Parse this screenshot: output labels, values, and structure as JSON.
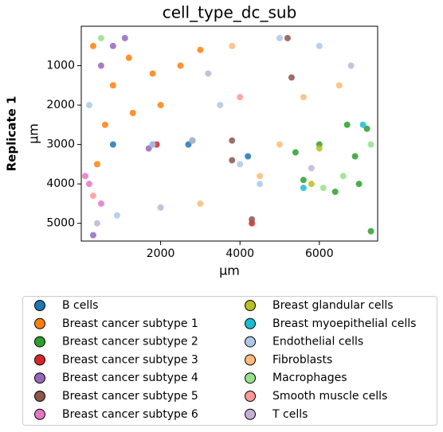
{
  "chart_data": {
    "type": "scatter",
    "title": "cell_type_dc_sub",
    "row_label": "Replicate 1",
    "x_label": "μm",
    "y_label": "μm",
    "xlim": [
      0,
      7470
    ],
    "ylim": [
      5450,
      0
    ],
    "xticks": [
      2000,
      4000,
      6000
    ],
    "yticks": [
      1000,
      2000,
      3000,
      4000,
      5000
    ],
    "series": [
      {
        "name": "B cells",
        "color": "#1f77b4",
        "x": [
          2700,
          1800,
          4200,
          800
        ],
        "y": [
          3000,
          3000,
          3300,
          3000
        ]
      },
      {
        "name": "Breast cancer subtype 1",
        "color": "#ff7f0e",
        "x": [
          300,
          800,
          1200,
          1800,
          2500,
          600,
          1300,
          400,
          3000,
          2000
        ],
        "y": [
          500,
          1500,
          800,
          1200,
          1000,
          2500,
          2200,
          3500,
          600,
          2000
        ]
      },
      {
        "name": "Breast cancer subtype 2",
        "color": "#2ca02c",
        "x": [
          6700,
          7200,
          6000,
          6900,
          5600,
          6400,
          7000,
          7300,
          5400
        ],
        "y": [
          2500,
          2600,
          3000,
          3300,
          3900,
          4200,
          4000,
          5200,
          3200
        ]
      },
      {
        "name": "Breast cancer subtype 3",
        "color": "#d62728",
        "x": [
          1900,
          2800,
          4300
        ],
        "y": [
          3000,
          2900,
          5000
        ]
      },
      {
        "name": "Breast cancer subtype 4",
        "color": "#9467bd",
        "x": [
          800,
          1100,
          500,
          300,
          1700
        ],
        "y": [
          500,
          300,
          1000,
          5300,
          3100
        ]
      },
      {
        "name": "Breast cancer subtype 5",
        "color": "#8c564b",
        "x": [
          5300,
          5200,
          2800,
          3800,
          4300,
          3800
        ],
        "y": [
          1300,
          300,
          2900,
          2900,
          4900,
          3400
        ]
      },
      {
        "name": "Breast cancer subtype 6",
        "color": "#e377c2",
        "x": [
          200,
          500,
          100
        ],
        "y": [
          4000,
          4500,
          3800
        ]
      },
      {
        "name": "Breast glandular cells",
        "color": "#bcbd22",
        "x": [
          6000,
          5800
        ],
        "y": [
          3100,
          4000
        ]
      },
      {
        "name": "Breast myoepithelial cells",
        "color": "#17becf",
        "x": [
          5600,
          7100
        ],
        "y": [
          4100,
          2500
        ]
      },
      {
        "name": "Endothelial cells",
        "color": "#aec7e8",
        "x": [
          1800,
          2800,
          4000,
          5000,
          3500,
          200,
          4500,
          6000,
          900
        ],
        "y": [
          3000,
          2900,
          3500,
          300,
          2000,
          2000,
          4000,
          500,
          4800
        ]
      },
      {
        "name": "Fibroblasts",
        "color": "#ffbb78",
        "x": [
          5000,
          4500,
          6500,
          3000,
          5600,
          3800
        ],
        "y": [
          3000,
          3800,
          1500,
          4500,
          1800,
          500
        ]
      },
      {
        "name": "Macrophages",
        "color": "#98df8a",
        "x": [
          6100,
          7300,
          500,
          6600
        ],
        "y": [
          4100,
          3000,
          300,
          3800
        ]
      },
      {
        "name": "Smooth muscle cells",
        "color": "#ff9896",
        "x": [
          300,
          4000
        ],
        "y": [
          4300,
          1800
        ]
      },
      {
        "name": "T cells",
        "color": "#c5b0d5",
        "x": [
          3200,
          5800,
          2000,
          400,
          6800
        ],
        "y": [
          1200,
          3600,
          4600,
          5000,
          1000
        ]
      }
    ]
  }
}
